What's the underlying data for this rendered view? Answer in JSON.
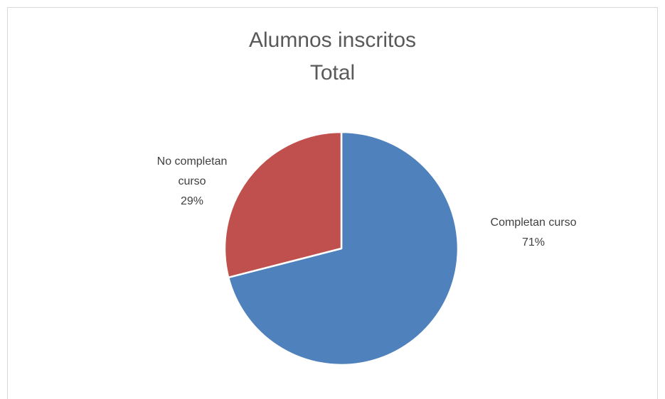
{
  "chart_data": {
    "type": "pie",
    "title": "Alumnos inscritos",
    "subtitle": "Total",
    "categories": [
      "Completan curso",
      "No completan curso"
    ],
    "values": [
      71,
      29
    ],
    "value_labels": [
      "71%",
      "29%"
    ],
    "colors": [
      "#4f81bd",
      "#c0504d"
    ]
  }
}
